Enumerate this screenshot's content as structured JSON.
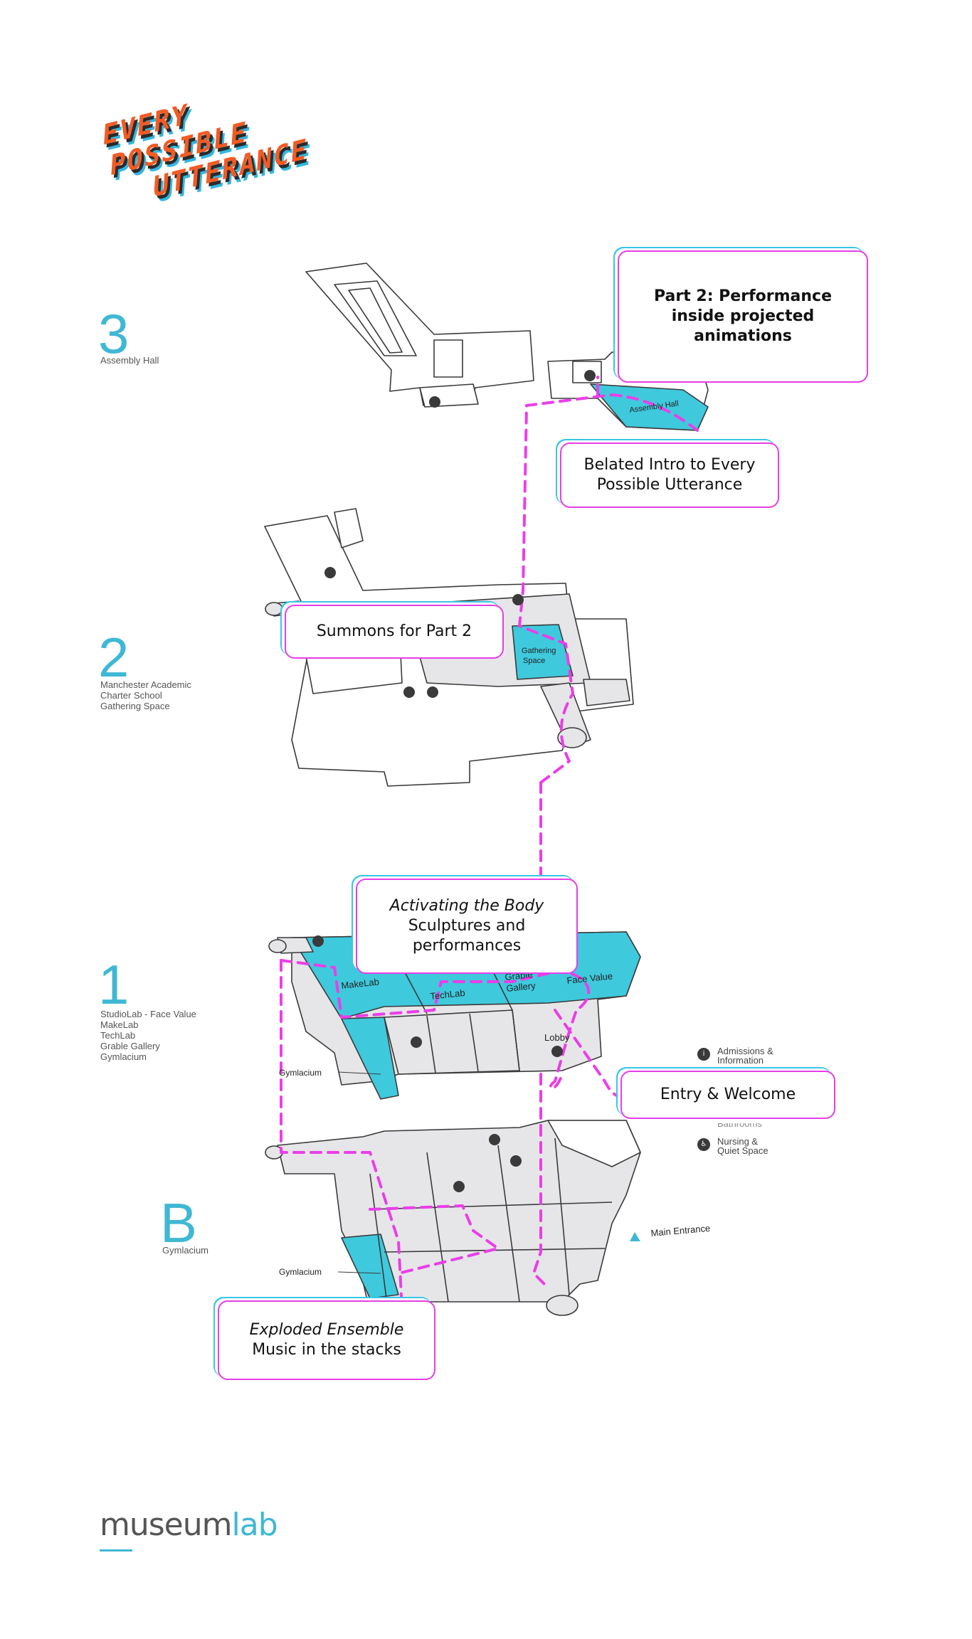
{
  "title_art": {
    "lines": [
      "EVERY",
      "POSSIBLE",
      "UTTERANCE"
    ],
    "colors": {
      "front": "#f25b23",
      "mid": "#2b2b2b",
      "back": "#35b7e0"
    }
  },
  "floors": [
    {
      "number": "3",
      "label": "Assembly Hall"
    },
    {
      "number": "2",
      "label": "Manchester Academic\n   Charter School\nGathering Space"
    },
    {
      "number": "1",
      "label": "StudioLab - Face Value\nMakeLab\nTechLab\nGrable Gallery\nGymlacium"
    },
    {
      "number": "B",
      "label": "Gymlacium"
    }
  ],
  "callouts": {
    "part2": {
      "line1": "Part 2: Performance",
      "line2": "inside projected",
      "line3": "animations"
    },
    "belated": {
      "line1": "Belated Intro to Every",
      "line2": "Possible Utterance"
    },
    "summons": {
      "line1": "Summons for Part 2"
    },
    "activating": {
      "line1": "Activating the Body",
      "line2": "Sculptures and",
      "line3": "performances"
    },
    "entry": {
      "line1": "Entry & Welcome"
    },
    "exploded": {
      "line1": "Exploded Ensemble",
      "line2": "Music in the stacks"
    }
  },
  "rooms": {
    "assembly_hall": "Assembly Hall",
    "gathering_space": "Gathering\nSpace",
    "makelab": "MakeLab",
    "techlab": "TechLab",
    "grable_gallery": "Grable\nGallery",
    "face_value": "Face Value",
    "lobby": "Lobby",
    "gymlacium_1": "Gymlacium",
    "gymlacium_b": "Gymlacium",
    "main_entrance": "Main Entrance"
  },
  "legend": [
    {
      "icon": "admissions-icon",
      "glyph": "i",
      "label": "Admissions &\nInformation"
    },
    {
      "icon": "bathrooms-icon",
      "glyph": "",
      "label": "Bathrooms"
    },
    {
      "icon": "nursing-icon",
      "glyph": "♿",
      "label": "Nursing &\nQuiet Space"
    }
  ],
  "logo": {
    "part1": "museum",
    "part2": "lab"
  },
  "colors": {
    "accent_blue": "#3fc9dd",
    "route_magenta": "#ea3ee8",
    "floor_gray": "#e6e6e8",
    "outline": "#3a3a3a"
  }
}
